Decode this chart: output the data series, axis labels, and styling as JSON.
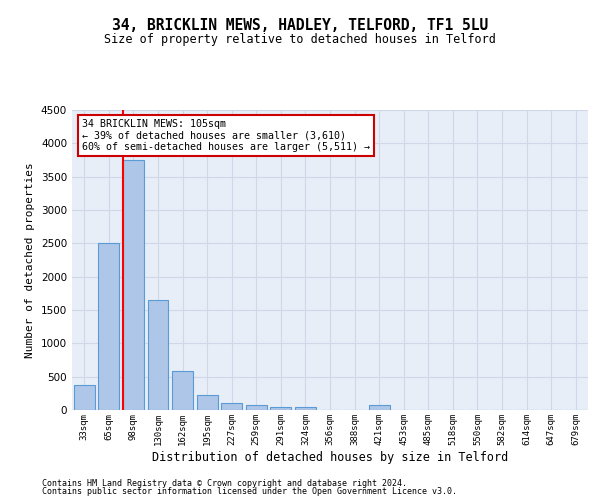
{
  "title": "34, BRICKLIN MEWS, HADLEY, TELFORD, TF1 5LU",
  "subtitle": "Size of property relative to detached houses in Telford",
  "xlabel": "Distribution of detached houses by size in Telford",
  "ylabel": "Number of detached properties",
  "footnote1": "Contains HM Land Registry data © Crown copyright and database right 2024.",
  "footnote2": "Contains public sector information licensed under the Open Government Licence v3.0.",
  "categories": [
    "33sqm",
    "65sqm",
    "98sqm",
    "130sqm",
    "162sqm",
    "195sqm",
    "227sqm",
    "259sqm",
    "291sqm",
    "324sqm",
    "356sqm",
    "388sqm",
    "421sqm",
    "453sqm",
    "485sqm",
    "518sqm",
    "550sqm",
    "582sqm",
    "614sqm",
    "647sqm",
    "679sqm"
  ],
  "values": [
    370,
    2500,
    3750,
    1650,
    590,
    230,
    110,
    70,
    50,
    40,
    0,
    0,
    70,
    0,
    0,
    0,
    0,
    0,
    0,
    0,
    0
  ],
  "bar_color": "#aec6e8",
  "bar_edge_color": "#5b9bd5",
  "grid_color": "#d0d8e8",
  "bg_color": "#e8eef8",
  "red_line_index": 2,
  "annotation_text": "34 BRICKLIN MEWS: 105sqm\n← 39% of detached houses are smaller (3,610)\n60% of semi-detached houses are larger (5,511) →",
  "annotation_box_color": "#cc0000",
  "ylim": [
    0,
    4500
  ],
  "yticks": [
    0,
    500,
    1000,
    1500,
    2000,
    2500,
    3000,
    3500,
    4000,
    4500
  ]
}
